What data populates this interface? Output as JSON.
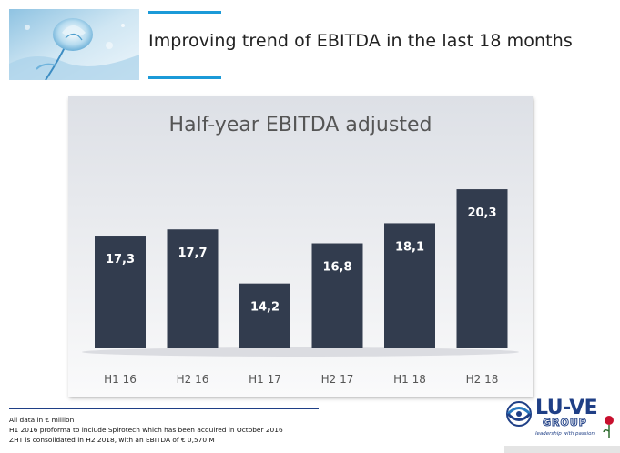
{
  "slide": {
    "title": "Improving trend of EBITDA in the last 18 months"
  },
  "chart_data": {
    "type": "bar",
    "title": "Half-year EBITDA adjusted",
    "categories": [
      "H1 16",
      "H2 16",
      "H1 17",
      "H2 17",
      "H1 18",
      "H2 18"
    ],
    "values": [
      17.3,
      17.7,
      14.2,
      16.8,
      18.1,
      20.3
    ],
    "value_labels": [
      "17,3",
      "17,7",
      "14,2",
      "16,8",
      "18,1",
      "20,3"
    ],
    "xlabel": "",
    "ylabel": "",
    "ylim": [
      10,
      21.6
    ],
    "grid": false,
    "bar_color": "#323c4e"
  },
  "footnotes": [
    "All data in € million",
    "H1 2016 proforma to include Spirotech which has been acquired in October 2016",
    "ZHT is consolidated in H2 2018, with an EBITDA of € 0,570 M"
  ],
  "logo": {
    "name": "LU-VE",
    "sub": "GROUP",
    "tagline": "leadership with passion"
  },
  "colors": {
    "accent": "#1b9ad8",
    "brand": "#1f3f86",
    "bar": "#323c4e"
  }
}
